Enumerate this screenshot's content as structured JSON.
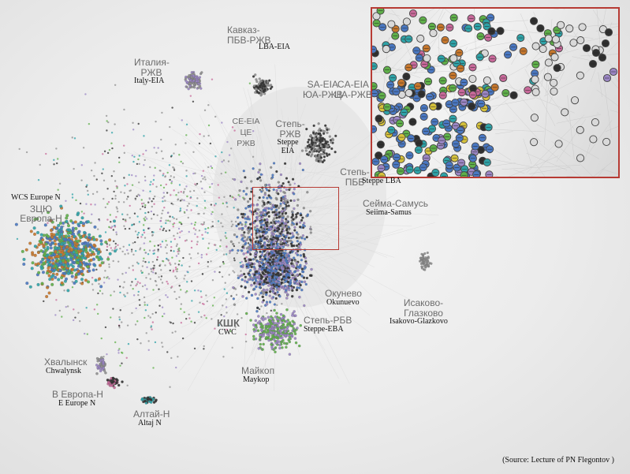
{
  "labels": [
    {
      "id": "kavkaz",
      "ru": "Кавказ-\nПБВ-РЖВ",
      "en": "LBA-EIA"
    },
    {
      "id": "italy",
      "ru": "Италия-\nРЖВ",
      "en": "Italy-EIA"
    },
    {
      "id": "sa",
      "ru": "SA-EIA\nЮА-РЖВ",
      "en": ""
    },
    {
      "id": "ca",
      "ru": "CA-EIA\nЦА-РЖВ",
      "en": ""
    },
    {
      "id": "ce",
      "ru": "CE-EIA\nЦЕ\nРЖВ",
      "en": ""
    },
    {
      "id": "steppe",
      "ru": "Степь-\nРЖВ",
      "en": "Steppe\nEIA"
    },
    {
      "id": "steppe-lba",
      "ru": "Степь-\nПБВ",
      "en": "Steppe LBA"
    },
    {
      "id": "seima",
      "ru": "Сейма-Самусь",
      "en": "Seiima-Samus"
    },
    {
      "id": "wcs",
      "ru": "ЗЦЮ\nЕвропа-Н",
      "en": "WCS Europe N"
    },
    {
      "id": "okunevo",
      "ru": "Окунево",
      "en": "Okunuevo"
    },
    {
      "id": "isakovo",
      "ru": "Исаково-\nГлазково",
      "en": "Isakovo-Glazkovo"
    },
    {
      "id": "cwc",
      "ru": "КШК",
      "en": "CWC"
    },
    {
      "id": "steppe-eba",
      "ru": "Степь-РБВ",
      "en": "Steppe-EBA"
    },
    {
      "id": "khvalynsk",
      "ru": "Хвалынск",
      "en": "Chwalynsk"
    },
    {
      "id": "maykop",
      "ru": "Майкоп",
      "en": "Maykop"
    },
    {
      "id": "e-europe",
      "ru": "В Европа-Н",
      "en": "E Europe N"
    },
    {
      "id": "altai",
      "ru": "Алтай-Н",
      "en": "Altaj N"
    }
  ],
  "source": "(Source: Lecture of PN Flegontov )",
  "colors": {
    "frame": "#b73b34",
    "grey": "#8f8f8f",
    "blue": "#4a78c2",
    "teal": "#2fa3a8",
    "green": "#5fb04a",
    "purple": "#9b86c4",
    "orange": "#c7772c",
    "yellow": "#d6c23c",
    "pink": "#c8699a",
    "dark": "#303030",
    "brown": "#8a5a35"
  },
  "clusters": [
    {
      "name": "main-mass",
      "colors": [
        "grey",
        "dark",
        "purple",
        "blue"
      ]
    },
    {
      "name": "cwc",
      "colors": [
        "purple",
        "dark",
        "blue"
      ]
    },
    {
      "name": "steppe-eba",
      "colors": [
        "green",
        "purple"
      ]
    },
    {
      "name": "wcs-europe",
      "colors": [
        "teal",
        "orange",
        "blue",
        "green"
      ]
    },
    {
      "name": "italy",
      "colors": [
        "purple",
        "grey"
      ]
    },
    {
      "name": "kavkaz",
      "colors": [
        "dark",
        "grey"
      ]
    },
    {
      "name": "steppe-eia",
      "colors": [
        "dark",
        "grey"
      ]
    },
    {
      "name": "isakovo",
      "colors": [
        "grey"
      ]
    },
    {
      "name": "khvalynsk",
      "colors": [
        "purple",
        "grey"
      ]
    },
    {
      "name": "e-europe",
      "colors": [
        "pink",
        "dark"
      ]
    },
    {
      "name": "altai",
      "colors": [
        "teal",
        "dark"
      ]
    }
  ]
}
